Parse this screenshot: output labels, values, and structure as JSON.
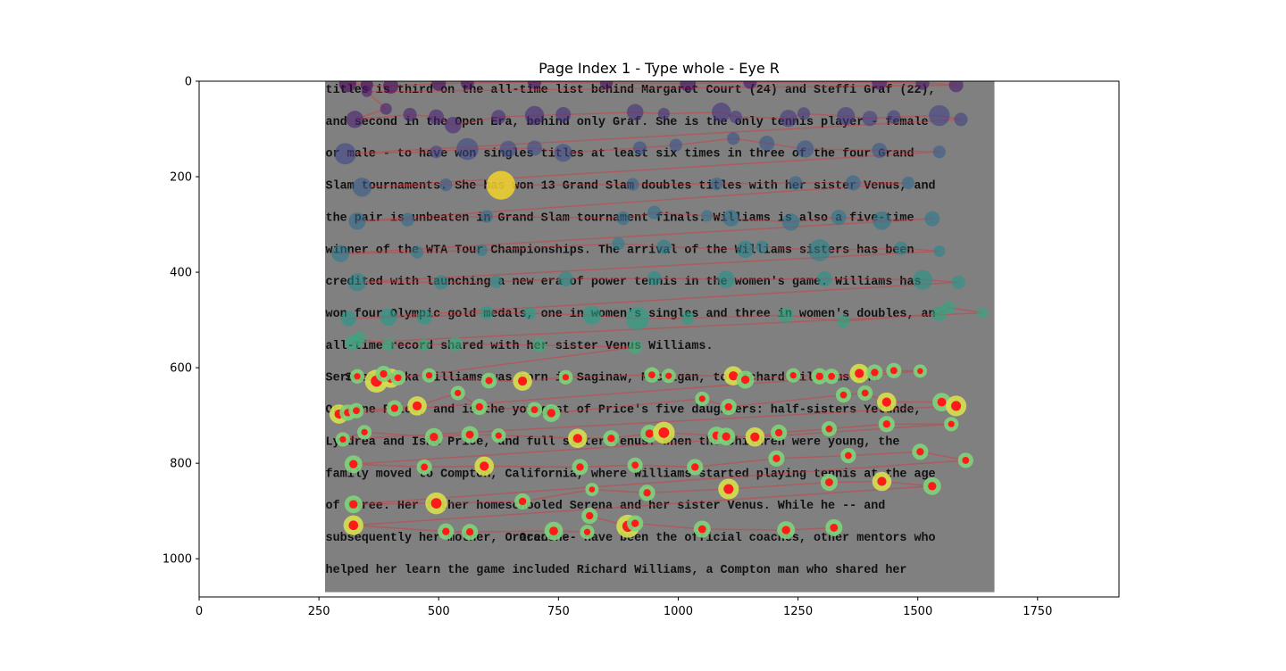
{
  "chart_data": {
    "type": "scatter",
    "title": "Page Index 1 - Type whole - Eye R",
    "xlim": [
      0,
      1920
    ],
    "ylim": [
      1080,
      0
    ],
    "xticks": [
      0,
      250,
      500,
      750,
      1000,
      1250,
      1500,
      1750
    ],
    "yticks": [
      0,
      200,
      400,
      600,
      800,
      1000
    ],
    "xtick_labels": [
      "0",
      "250",
      "500",
      "750",
      "1000",
      "1250",
      "1500",
      "1750"
    ],
    "ytick_labels": [
      "0",
      "200",
      "400",
      "600",
      "800",
      "1000"
    ],
    "grid": false,
    "background_image": {
      "extent": [
        260,
        1660,
        0,
        1070
      ],
      "text_x": 262,
      "lines": [
        {
          "y": 15,
          "text": "titles is third on the all-time list behind Margaret Court (24) and Steffi Graf (22),"
        },
        {
          "y": 82,
          "text": "and second in the Open Era, behind only Graf. She is the only tennis player - female"
        },
        {
          "y": 149,
          "text": "or male - to have won singles titles at least six times in three of the four Grand"
        },
        {
          "y": 216,
          "text": "Slam tournaments. She has won 13 Grand Slam doubles titles with her sister Venus, and"
        },
        {
          "y": 283,
          "text": "the pair is unbeaten in Grand Slam tournament finals. Williams is also a five-time"
        },
        {
          "y": 350,
          "text": "winner of the WTA Tour Championships. The arrival of the Williams sisters has been"
        },
        {
          "y": 417,
          "text": "credited with launching a new era of power tennis in the women's game. Williams has"
        },
        {
          "y": 484,
          "text": "won four Olympic gold medals, one in women's singles and three in women's doubles, an"
        },
        {
          "y": 551,
          "text": "all-time record shared with her sister Venus Williams."
        },
        {
          "y": 618,
          "text": "Serena Jameka Williams was born in Saginaw, Michigan, to Richard Williams and"
        },
        {
          "y": 685,
          "text": "Oracene Price, and is the youngest of Price's five daughters: half-sisters Yetunde,"
        },
        {
          "y": 752,
          "text": "Lyndrea and Isha Price, and full sister Venus. When the children were young, the"
        },
        {
          "y": 819,
          "text": "family moved to Compton, California, where Williams started playing tennis at the age"
        },
        {
          "y": 886,
          "text": "of three. Her father homeschooled Serena and her sister Venus. While he -- and"
        },
        {
          "y": 953,
          "text": "subsequently her mother, Oracene -- have been the official coaches, other mentors who"
        },
        {
          "y": 1020,
          "text": "helped her learn the game included Richard Williams, a Compton man who shared her"
        }
      ],
      "highlighted_words": [
        {
          "line": 9,
          "text": "Serena",
          "x": 305
        },
        {
          "line": 14,
          "text": "Oracene",
          "x": 668
        }
      ]
    },
    "fixations": [
      {
        "x": 310,
        "y": 5,
        "d": 260
      },
      {
        "x": 350,
        "y": 8,
        "d": 140
      },
      {
        "x": 400,
        "y": 10,
        "d": 200
      },
      {
        "x": 500,
        "y": 5,
        "d": 180
      },
      {
        "x": 560,
        "y": 4,
        "d": 150
      },
      {
        "x": 700,
        "y": 2,
        "d": 160
      },
      {
        "x": 850,
        "y": 4,
        "d": 140
      },
      {
        "x": 1020,
        "y": 5,
        "d": 220
      },
      {
        "x": 1150,
        "y": 2,
        "d": 160
      },
      {
        "x": 1420,
        "y": 2,
        "d": 200
      },
      {
        "x": 1510,
        "y": 4,
        "d": 160
      },
      {
        "x": 1580,
        "y": 8,
        "d": 180
      },
      {
        "x": 350,
        "y": 22,
        "d": 100
      },
      {
        "x": 390,
        "y": 58,
        "d": 120
      },
      {
        "x": 325,
        "y": 80,
        "d": 260
      },
      {
        "x": 440,
        "y": 70,
        "d": 160
      },
      {
        "x": 495,
        "y": 75,
        "d": 200
      },
      {
        "x": 530,
        "y": 92,
        "d": 240
      },
      {
        "x": 625,
        "y": 75,
        "d": 180
      },
      {
        "x": 700,
        "y": 72,
        "d": 320
      },
      {
        "x": 760,
        "y": 70,
        "d": 200
      },
      {
        "x": 910,
        "y": 65,
        "d": 240
      },
      {
        "x": 970,
        "y": 68,
        "d": 120
      },
      {
        "x": 1090,
        "y": 65,
        "d": 320
      },
      {
        "x": 1120,
        "y": 75,
        "d": 140
      },
      {
        "x": 1230,
        "y": 78,
        "d": 260
      },
      {
        "x": 1262,
        "y": 68,
        "d": 140
      },
      {
        "x": 1350,
        "y": 73,
        "d": 280
      },
      {
        "x": 1400,
        "y": 78,
        "d": 200
      },
      {
        "x": 1450,
        "y": 75,
        "d": 160
      },
      {
        "x": 1545,
        "y": 72,
        "d": 380
      },
      {
        "x": 1590,
        "y": 80,
        "d": 160
      },
      {
        "x": 305,
        "y": 152,
        "d": 400
      },
      {
        "x": 495,
        "y": 148,
        "d": 140
      },
      {
        "x": 560,
        "y": 142,
        "d": 420
      },
      {
        "x": 645,
        "y": 142,
        "d": 240
      },
      {
        "x": 700,
        "y": 140,
        "d": 200
      },
      {
        "x": 760,
        "y": 150,
        "d": 280
      },
      {
        "x": 920,
        "y": 140,
        "d": 160
      },
      {
        "x": 995,
        "y": 134,
        "d": 140
      },
      {
        "x": 1115,
        "y": 120,
        "d": 140
      },
      {
        "x": 1185,
        "y": 130,
        "d": 200
      },
      {
        "x": 1265,
        "y": 142,
        "d": 260
      },
      {
        "x": 1420,
        "y": 145,
        "d": 200
      },
      {
        "x": 1545,
        "y": 148,
        "d": 140
      },
      {
        "x": 340,
        "y": 222,
        "d": 320
      },
      {
        "x": 515,
        "y": 217,
        "d": 140
      },
      {
        "x": 630,
        "y": 218,
        "d": 720,
        "selected": true
      },
      {
        "x": 905,
        "y": 216,
        "d": 140
      },
      {
        "x": 1080,
        "y": 215,
        "d": 140
      },
      {
        "x": 1245,
        "y": 213,
        "d": 160
      },
      {
        "x": 1365,
        "y": 213,
        "d": 200
      },
      {
        "x": 1480,
        "y": 213,
        "d": 140
      },
      {
        "x": 330,
        "y": 293,
        "d": 260
      },
      {
        "x": 435,
        "y": 290,
        "d": 160
      },
      {
        "x": 600,
        "y": 283,
        "d": 140
      },
      {
        "x": 885,
        "y": 287,
        "d": 160
      },
      {
        "x": 950,
        "y": 275,
        "d": 160
      },
      {
        "x": 1060,
        "y": 282,
        "d": 120
      },
      {
        "x": 1110,
        "y": 287,
        "d": 240
      },
      {
        "x": 1235,
        "y": 295,
        "d": 260
      },
      {
        "x": 1335,
        "y": 285,
        "d": 200
      },
      {
        "x": 1425,
        "y": 292,
        "d": 300
      },
      {
        "x": 1530,
        "y": 288,
        "d": 200
      },
      {
        "x": 295,
        "y": 361,
        "d": 260
      },
      {
        "x": 455,
        "y": 358,
        "d": 140
      },
      {
        "x": 590,
        "y": 354,
        "d": 120
      },
      {
        "x": 875,
        "y": 340,
        "d": 140
      },
      {
        "x": 970,
        "y": 347,
        "d": 180
      },
      {
        "x": 1140,
        "y": 352,
        "d": 260
      },
      {
        "x": 1175,
        "y": 347,
        "d": 140
      },
      {
        "x": 1295,
        "y": 354,
        "d": 420
      },
      {
        "x": 1465,
        "y": 350,
        "d": 160
      },
      {
        "x": 1545,
        "y": 356,
        "d": 120
      },
      {
        "x": 330,
        "y": 421,
        "d": 280
      },
      {
        "x": 505,
        "y": 421,
        "d": 180
      },
      {
        "x": 620,
        "y": 420,
        "d": 140
      },
      {
        "x": 765,
        "y": 414,
        "d": 200
      },
      {
        "x": 950,
        "y": 413,
        "d": 180
      },
      {
        "x": 1100,
        "y": 415,
        "d": 260
      },
      {
        "x": 1305,
        "y": 414,
        "d": 200
      },
      {
        "x": 1510,
        "y": 416,
        "d": 340
      },
      {
        "x": 1585,
        "y": 421,
        "d": 160
      },
      {
        "x": 312,
        "y": 497,
        "d": 200
      },
      {
        "x": 395,
        "y": 494,
        "d": 260
      },
      {
        "x": 470,
        "y": 494,
        "d": 200
      },
      {
        "x": 600,
        "y": 485,
        "d": 160
      },
      {
        "x": 690,
        "y": 486,
        "d": 140
      },
      {
        "x": 820,
        "y": 490,
        "d": 300
      },
      {
        "x": 915,
        "y": 497,
        "d": 480
      },
      {
        "x": 1020,
        "y": 496,
        "d": 140
      },
      {
        "x": 1225,
        "y": 490,
        "d": 200
      },
      {
        "x": 1345,
        "y": 503,
        "d": 140
      },
      {
        "x": 1545,
        "y": 487,
        "d": 200
      },
      {
        "x": 1565,
        "y": 474,
        "d": 140
      },
      {
        "x": 1635,
        "y": 485,
        "d": 100
      },
      {
        "x": 320,
        "y": 548,
        "d": 200
      },
      {
        "x": 335,
        "y": 539,
        "d": 160
      },
      {
        "x": 395,
        "y": 551,
        "d": 140
      },
      {
        "x": 470,
        "y": 552,
        "d": 120
      },
      {
        "x": 535,
        "y": 550,
        "d": 180
      },
      {
        "x": 710,
        "y": 553,
        "d": 160
      },
      {
        "x": 910,
        "y": 557,
        "d": 160
      }
    ],
    "current_fixations": [
      {
        "x": 370,
        "y": 628,
        "d": 360
      },
      {
        "x": 400,
        "y": 622,
        "d": 240
      },
      {
        "x": 385,
        "y": 613,
        "d": 160
      },
      {
        "x": 415,
        "y": 621,
        "d": 140
      },
      {
        "x": 330,
        "y": 618,
        "d": 120
      },
      {
        "x": 480,
        "y": 616,
        "d": 120
      },
      {
        "x": 605,
        "y": 627,
        "d": 150
      },
      {
        "x": 675,
        "y": 628,
        "d": 240
      },
      {
        "x": 765,
        "y": 620,
        "d": 120
      },
      {
        "x": 945,
        "y": 615,
        "d": 140
      },
      {
        "x": 980,
        "y": 617,
        "d": 120
      },
      {
        "x": 1115,
        "y": 617,
        "d": 240
      },
      {
        "x": 1140,
        "y": 625,
        "d": 200
      },
      {
        "x": 1240,
        "y": 616,
        "d": 120
      },
      {
        "x": 1295,
        "y": 618,
        "d": 160
      },
      {
        "x": 1320,
        "y": 618,
        "d": 140
      },
      {
        "x": 1378,
        "y": 612,
        "d": 240
      },
      {
        "x": 1410,
        "y": 610,
        "d": 160
      },
      {
        "x": 1450,
        "y": 606,
        "d": 140
      },
      {
        "x": 1505,
        "y": 607,
        "d": 100
      },
      {
        "x": 292,
        "y": 697,
        "d": 240
      },
      {
        "x": 310,
        "y": 694,
        "d": 160
      },
      {
        "x": 328,
        "y": 690,
        "d": 140
      },
      {
        "x": 408,
        "y": 685,
        "d": 160
      },
      {
        "x": 455,
        "y": 680,
        "d": 240
      },
      {
        "x": 540,
        "y": 653,
        "d": 120
      },
      {
        "x": 585,
        "y": 682,
        "d": 160
      },
      {
        "x": 700,
        "y": 688,
        "d": 140
      },
      {
        "x": 735,
        "y": 695,
        "d": 200
      },
      {
        "x": 1050,
        "y": 665,
        "d": 120
      },
      {
        "x": 1105,
        "y": 682,
        "d": 160
      },
      {
        "x": 1345,
        "y": 657,
        "d": 140
      },
      {
        "x": 1390,
        "y": 653,
        "d": 140
      },
      {
        "x": 1435,
        "y": 672,
        "d": 240
      },
      {
        "x": 1550,
        "y": 672,
        "d": 220
      },
      {
        "x": 1580,
        "y": 680,
        "d": 280
      },
      {
        "x": 300,
        "y": 750,
        "d": 120
      },
      {
        "x": 345,
        "y": 735,
        "d": 120
      },
      {
        "x": 490,
        "y": 745,
        "d": 200
      },
      {
        "x": 565,
        "y": 740,
        "d": 180
      },
      {
        "x": 625,
        "y": 742,
        "d": 120
      },
      {
        "x": 790,
        "y": 748,
        "d": 240
      },
      {
        "x": 860,
        "y": 748,
        "d": 160
      },
      {
        "x": 940,
        "y": 738,
        "d": 200
      },
      {
        "x": 970,
        "y": 736,
        "d": 320
      },
      {
        "x": 1080,
        "y": 742,
        "d": 200
      },
      {
        "x": 1100,
        "y": 744,
        "d": 200
      },
      {
        "x": 1160,
        "y": 745,
        "d": 240
      },
      {
        "x": 1210,
        "y": 736,
        "d": 160
      },
      {
        "x": 1315,
        "y": 728,
        "d": 140
      },
      {
        "x": 1435,
        "y": 718,
        "d": 160
      },
      {
        "x": 1570,
        "y": 718,
        "d": 120
      },
      {
        "x": 322,
        "y": 802,
        "d": 200
      },
      {
        "x": 470,
        "y": 808,
        "d": 140
      },
      {
        "x": 595,
        "y": 806,
        "d": 240
      },
      {
        "x": 795,
        "y": 808,
        "d": 160
      },
      {
        "x": 910,
        "y": 804,
        "d": 140
      },
      {
        "x": 1035,
        "y": 808,
        "d": 160
      },
      {
        "x": 1205,
        "y": 790,
        "d": 160
      },
      {
        "x": 1355,
        "y": 784,
        "d": 140
      },
      {
        "x": 1505,
        "y": 776,
        "d": 160
      },
      {
        "x": 1600,
        "y": 794,
        "d": 140
      },
      {
        "x": 322,
        "y": 886,
        "d": 200
      },
      {
        "x": 495,
        "y": 884,
        "d": 320
      },
      {
        "x": 675,
        "y": 880,
        "d": 160
      },
      {
        "x": 820,
        "y": 855,
        "d": 100
      },
      {
        "x": 935,
        "y": 862,
        "d": 160
      },
      {
        "x": 1105,
        "y": 854,
        "d": 280
      },
      {
        "x": 1315,
        "y": 840,
        "d": 180
      },
      {
        "x": 1425,
        "y": 838,
        "d": 240
      },
      {
        "x": 1530,
        "y": 848,
        "d": 200
      },
      {
        "x": 322,
        "y": 930,
        "d": 260
      },
      {
        "x": 515,
        "y": 943,
        "d": 160
      },
      {
        "x": 565,
        "y": 944,
        "d": 160
      },
      {
        "x": 740,
        "y": 942,
        "d": 220
      },
      {
        "x": 810,
        "y": 944,
        "d": 120
      },
      {
        "x": 815,
        "y": 910,
        "d": 160
      },
      {
        "x": 895,
        "y": 932,
        "d": 360
      },
      {
        "x": 910,
        "y": 926,
        "d": 160
      },
      {
        "x": 1050,
        "y": 938,
        "d": 180
      },
      {
        "x": 1225,
        "y": 940,
        "d": 200
      },
      {
        "x": 1325,
        "y": 935,
        "d": 180
      }
    ]
  }
}
